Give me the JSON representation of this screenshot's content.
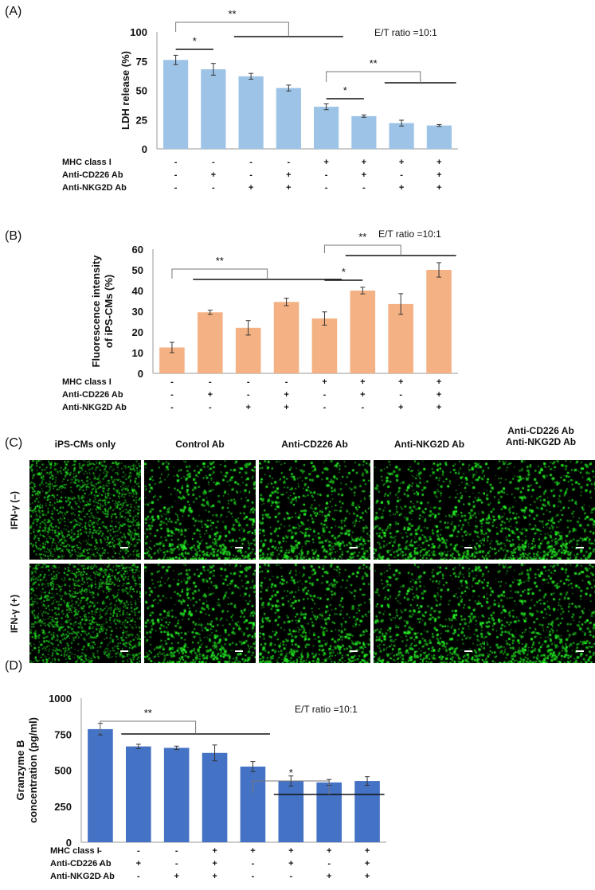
{
  "panels": {
    "a_label": "(A)",
    "b_label": "(B)",
    "c_label": "(C)",
    "d_label": "(D)"
  },
  "chart_data": [
    {
      "type": "bar",
      "panel": "(A)",
      "ylabel": "LDH release (%)",
      "ylim": [
        0,
        100
      ],
      "yticks": [
        "0",
        "25",
        "50",
        "75",
        "100"
      ],
      "annotation": "E/T ratio =10:1",
      "bar_color": "#9dc3e6",
      "values": [
        76,
        68,
        62,
        52,
        36,
        28,
        22,
        20
      ],
      "errors": [
        4,
        5,
        2.5,
        2.5,
        2.5,
        1,
        2.5,
        0.8
      ],
      "conditions": [
        {
          "label": "MHC class I",
          "signs": [
            "-",
            "-",
            "-",
            "-",
            "+",
            "+",
            "+",
            "+"
          ]
        },
        {
          "label": "Anti-CD226 Ab",
          "signs": [
            "-",
            "+",
            "-",
            "+",
            "-",
            "+",
            "-",
            "+"
          ]
        },
        {
          "label": "Anti-NKG2D Ab",
          "signs": [
            "-",
            "-",
            "+",
            "+",
            "-",
            "-",
            "+",
            "+"
          ]
        }
      ],
      "significance": [
        {
          "text": "**",
          "from": 0,
          "to_start": 2,
          "to_end": 4
        },
        {
          "text": "*",
          "from": 0,
          "to_start": 1,
          "to_end": 1
        },
        {
          "text": "**",
          "from": 4,
          "to_start": 6,
          "to_end": 7
        },
        {
          "text": "*",
          "from": 4,
          "to_start": 5,
          "to_end": 5
        }
      ]
    },
    {
      "type": "bar",
      "panel": "(B)",
      "ylabel": "Fluorescence intensity of iPS-CMs (%)",
      "ylabel_lines": [
        "Fluorescence intensity",
        "of iPS-CMs (%)"
      ],
      "ylim": [
        0,
        60
      ],
      "yticks": [
        "0",
        "10",
        "20",
        "30",
        "40",
        "50",
        "60"
      ],
      "annotation": "E/T ratio =10:1",
      "bar_color": "#f4b183",
      "values": [
        12.5,
        29.5,
        22,
        34.5,
        26.5,
        40,
        33.5,
        50
      ],
      "errors": [
        2.5,
        1,
        3.5,
        1.8,
        3.2,
        1.6,
        5,
        3.5
      ],
      "conditions": [
        {
          "label": "MHC class I",
          "signs": [
            "-",
            "-",
            "-",
            "-",
            "+",
            "+",
            "+",
            "+"
          ]
        },
        {
          "label": "Anti-CD226 Ab",
          "signs": [
            "-",
            "+",
            "-",
            "+",
            "-",
            "+",
            "-",
            "+"
          ]
        },
        {
          "label": "Anti-NKG2D Ab",
          "signs": [
            "-",
            "-",
            "+",
            "+",
            "-",
            "-",
            "+",
            "+"
          ]
        }
      ],
      "significance": [
        {
          "text": "**",
          "from": 0,
          "to_start": 1,
          "to_end": 4
        },
        {
          "text": "*",
          "from": 4,
          "to_start": 5,
          "to_end": 5
        },
        {
          "text": "**",
          "from": 4,
          "to_start": 5,
          "to_end": 7
        }
      ]
    },
    {
      "type": "bar",
      "panel": "(D)",
      "ylabel": "Granzyme B concentration (pg/ml)",
      "ylabel_lines": [
        "Granzyme B",
        "concentration (pg/ml)"
      ],
      "ylim": [
        0,
        1000
      ],
      "yticks": [
        "0",
        "250",
        "500",
        "750",
        "1000"
      ],
      "annotation": "E/T ratio =10:1",
      "bar_color": "#4472c4",
      "values": [
        785,
        665,
        655,
        620,
        525,
        425,
        415,
        425
      ],
      "errors": [
        40,
        15,
        12,
        55,
        35,
        35,
        20,
        30
      ],
      "conditions": [
        {
          "label": "MHC class I",
          "signs": [
            "-",
            "-",
            "-",
            "+",
            "+",
            "+",
            "+",
            "+"
          ]
        },
        {
          "label": "Anti-CD226 Ab",
          "signs": [
            "-",
            "+",
            "-",
            "+",
            "-",
            "+",
            "-",
            "+"
          ]
        },
        {
          "label": "Anti-NKG2D Ab",
          "signs": [
            "-",
            "-",
            "+",
            "+",
            "-",
            "-",
            "+",
            "+"
          ]
        }
      ],
      "significance": [
        {
          "text": "**",
          "from": 0,
          "to_start": 1,
          "to_end": 4
        },
        {
          "text": "*",
          "from": 4,
          "to_start": 5,
          "to_end": 7
        }
      ]
    }
  ],
  "micrographs": {
    "columns": [
      "iPS-CMs only",
      "Control Ab",
      "Anti-CD226 Ab",
      "Anti-NKG2D Ab",
      "Anti-CD226 Ab\nAnti-NKG2D Ab"
    ],
    "column_lines": [
      [
        "iPS-CMs only"
      ],
      [
        "Control Ab"
      ],
      [
        "Anti-CD226 Ab"
      ],
      [
        "Anti-NKG2D Ab"
      ],
      [
        "Anti-CD226 Ab",
        "Anti-NKG2D Ab"
      ]
    ],
    "rows": [
      "IFN-γ (–)",
      "IFN-γ (+)"
    ],
    "fluorescence_color": "#22dd22"
  }
}
